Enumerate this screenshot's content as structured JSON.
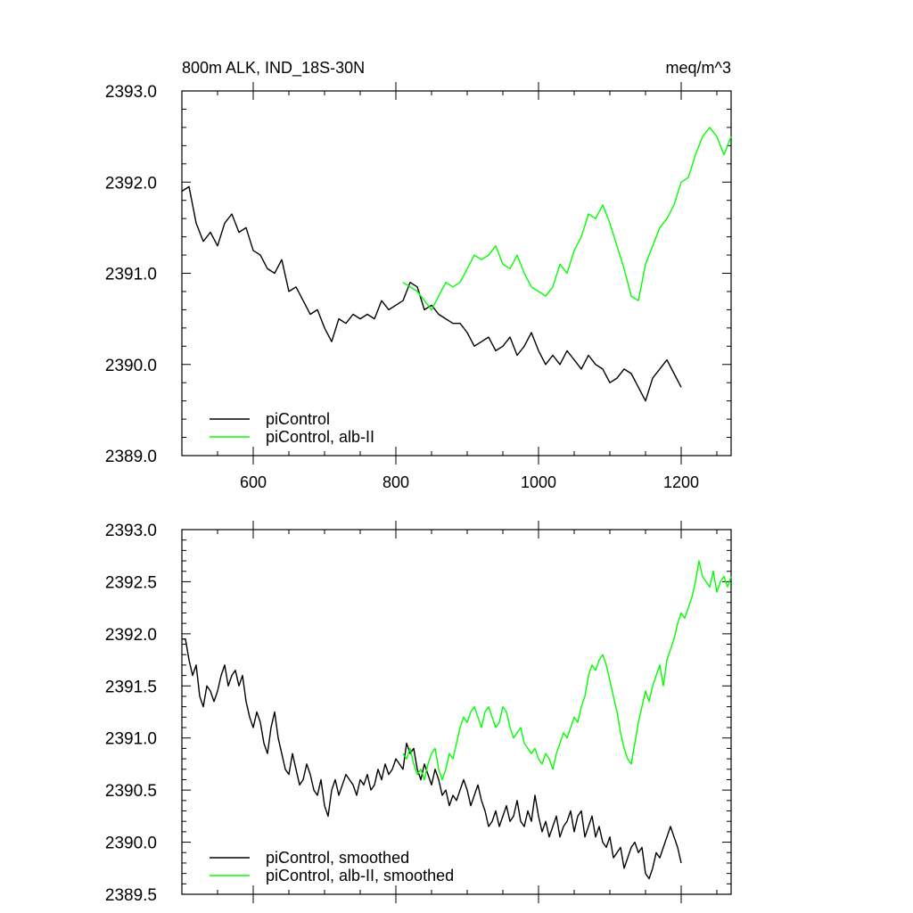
{
  "chart_data": [
    {
      "type": "line",
      "title_left": "800m ALK, IND_18S-30N",
      "title_right": "meq/m^3",
      "xlim": [
        500,
        1270
      ],
      "ylim": [
        2389.0,
        2393.0
      ],
      "xticks": [
        600,
        800,
        1000,
        1200
      ],
      "xtick_labels": [
        "600",
        "800",
        "1000",
        "1200"
      ],
      "yticks": [
        2389.0,
        2390.0,
        2391.0,
        2392.0,
        2393.0
      ],
      "ytick_labels": [
        "2389.0",
        "2390.0",
        "2391.0",
        "2392.0",
        "2393.0"
      ],
      "legend_position": "bottom-left",
      "series": [
        {
          "name": "piControl",
          "color": "#000000",
          "x": [
            500,
            510,
            520,
            530,
            540,
            550,
            560,
            570,
            580,
            590,
            600,
            610,
            620,
            630,
            640,
            650,
            660,
            670,
            680,
            690,
            700,
            710,
            720,
            730,
            740,
            750,
            760,
            770,
            780,
            790,
            800,
            810,
            820,
            830,
            840,
            850,
            860,
            870,
            880,
            890,
            900,
            910,
            920,
            930,
            940,
            950,
            960,
            970,
            980,
            990,
            1000,
            1010,
            1020,
            1030,
            1040,
            1050,
            1060,
            1070,
            1080,
            1090,
            1100,
            1110,
            1120,
            1130,
            1140,
            1150,
            1160,
            1170,
            1180,
            1190,
            1200
          ],
          "y": [
            2391.9,
            2391.95,
            2391.55,
            2391.35,
            2391.45,
            2391.3,
            2391.55,
            2391.65,
            2391.45,
            2391.5,
            2391.25,
            2391.2,
            2391.05,
            2391.0,
            2391.15,
            2390.8,
            2390.85,
            2390.7,
            2390.55,
            2390.6,
            2390.4,
            2390.25,
            2390.5,
            2390.45,
            2390.55,
            2390.5,
            2390.55,
            2390.5,
            2390.7,
            2390.6,
            2390.65,
            2390.7,
            2390.9,
            2390.85,
            2390.6,
            2390.65,
            2390.55,
            2390.5,
            2390.45,
            2390.45,
            2390.35,
            2390.2,
            2390.25,
            2390.3,
            2390.15,
            2390.2,
            2390.3,
            2390.1,
            2390.2,
            2390.35,
            2390.15,
            2390.0,
            2390.1,
            2390.0,
            2390.15,
            2390.05,
            2389.95,
            2390.1,
            2390.0,
            2389.95,
            2389.8,
            2389.85,
            2389.95,
            2389.9,
            2389.75,
            2389.6,
            2389.85,
            2389.95,
            2390.05,
            2389.9,
            2389.75
          ]
        },
        {
          "name": "piControl, alb-II",
          "color": "#00ff00",
          "x": [
            810,
            820,
            830,
            840,
            850,
            860,
            870,
            880,
            890,
            900,
            910,
            920,
            930,
            940,
            950,
            960,
            970,
            980,
            990,
            1000,
            1010,
            1020,
            1030,
            1040,
            1050,
            1060,
            1070,
            1080,
            1090,
            1100,
            1110,
            1120,
            1130,
            1140,
            1150,
            1160,
            1170,
            1180,
            1190,
            1200,
            1210,
            1220,
            1230,
            1240,
            1250,
            1260,
            1270
          ],
          "y": [
            2390.9,
            2390.85,
            2390.8,
            2390.7,
            2390.6,
            2390.75,
            2390.9,
            2390.85,
            2390.9,
            2391.05,
            2391.2,
            2391.15,
            2391.2,
            2391.3,
            2391.1,
            2391.05,
            2391.2,
            2391.0,
            2390.85,
            2390.8,
            2390.75,
            2390.85,
            2391.1,
            2391.0,
            2391.25,
            2391.4,
            2391.65,
            2391.6,
            2391.75,
            2391.55,
            2391.3,
            2391.05,
            2390.75,
            2390.7,
            2391.1,
            2391.3,
            2391.5,
            2391.6,
            2391.75,
            2392.0,
            2392.05,
            2392.3,
            2392.5,
            2392.6,
            2392.5,
            2392.3,
            2392.5
          ]
        }
      ]
    },
    {
      "type": "line",
      "xlim": [
        500,
        1270
      ],
      "ylim": [
        2389.5,
        2393.0
      ],
      "xticks": [
        600,
        800,
        1000,
        1200
      ],
      "yticks": [
        2389.5,
        2390.0,
        2390.5,
        2391.0,
        2391.5,
        2392.0,
        2392.5,
        2393.0
      ],
      "ytick_labels": [
        "2389.5",
        "2390.0",
        "2390.5",
        "2391.0",
        "2391.5",
        "2392.0",
        "2392.5",
        "2393.0"
      ],
      "legend_position": "bottom-left",
      "series": [
        {
          "name": "piControl, smoothed",
          "color": "#000000",
          "x": [
            500,
            505,
            510,
            515,
            520,
            525,
            530,
            535,
            540,
            545,
            550,
            555,
            560,
            565,
            570,
            575,
            580,
            585,
            590,
            595,
            600,
            605,
            610,
            615,
            620,
            625,
            630,
            635,
            640,
            645,
            650,
            655,
            660,
            665,
            670,
            675,
            680,
            685,
            690,
            695,
            700,
            705,
            710,
            715,
            720,
            725,
            730,
            735,
            740,
            745,
            750,
            755,
            760,
            765,
            770,
            775,
            780,
            785,
            790,
            795,
            800,
            805,
            810,
            815,
            820,
            825,
            830,
            835,
            840,
            845,
            850,
            855,
            860,
            865,
            870,
            875,
            880,
            885,
            890,
            895,
            900,
            905,
            910,
            915,
            920,
            925,
            930,
            935,
            940,
            945,
            950,
            955,
            960,
            965,
            970,
            975,
            980,
            985,
            990,
            995,
            1000,
            1005,
            1010,
            1015,
            1020,
            1025,
            1030,
            1035,
            1040,
            1045,
            1050,
            1055,
            1060,
            1065,
            1070,
            1075,
            1080,
            1085,
            1090,
            1095,
            1100,
            1105,
            1110,
            1115,
            1120,
            1125,
            1130,
            1135,
            1140,
            1145,
            1150,
            1155,
            1160,
            1165,
            1170,
            1175,
            1180,
            1185,
            1190,
            1195,
            1200
          ],
          "y": [
            2391.95,
            2391.95,
            2391.75,
            2391.6,
            2391.7,
            2391.4,
            2391.3,
            2391.5,
            2391.45,
            2391.35,
            2391.45,
            2391.6,
            2391.7,
            2391.5,
            2391.6,
            2391.65,
            2391.5,
            2391.6,
            2391.35,
            2391.2,
            2391.1,
            2391.25,
            2391.15,
            2390.95,
            2390.85,
            2391.1,
            2391.25,
            2391.0,
            2390.85,
            2390.7,
            2390.65,
            2390.85,
            2390.7,
            2390.55,
            2390.6,
            2390.75,
            2390.65,
            2390.5,
            2390.45,
            2390.6,
            2390.35,
            2390.25,
            2390.5,
            2390.6,
            2390.45,
            2390.55,
            2390.65,
            2390.6,
            2390.55,
            2390.45,
            2390.6,
            2390.55,
            2390.65,
            2390.5,
            2390.55,
            2390.7,
            2390.6,
            2390.75,
            2390.65,
            2390.7,
            2390.8,
            2390.75,
            2390.7,
            2390.95,
            2390.85,
            2390.9,
            2390.7,
            2390.6,
            2390.75,
            2390.65,
            2390.55,
            2390.7,
            2390.6,
            2390.45,
            2390.5,
            2390.35,
            2390.45,
            2390.4,
            2390.5,
            2390.6,
            2390.5,
            2390.35,
            2390.45,
            2390.55,
            2390.4,
            2390.3,
            2390.15,
            2390.2,
            2390.3,
            2390.15,
            2390.25,
            2390.35,
            2390.2,
            2390.25,
            2390.4,
            2390.2,
            2390.15,
            2390.3,
            2390.2,
            2390.45,
            2390.25,
            2390.1,
            2390.2,
            2390.05,
            2390.15,
            2390.25,
            2390.05,
            2390.15,
            2390.2,
            2390.3,
            2390.1,
            2390.25,
            2390.3,
            2390.05,
            2390.15,
            2390.25,
            2390.05,
            2390.15,
            2390.0,
            2389.95,
            2390.05,
            2389.85,
            2389.9,
            2389.95,
            2389.75,
            2389.85,
            2389.95,
            2390.0,
            2389.9,
            2389.95,
            2389.7,
            2389.65,
            2389.75,
            2389.9,
            2389.85,
            2389.95,
            2390.05,
            2390.15,
            2390.05,
            2389.95,
            2389.8
          ]
        },
        {
          "name": "piControl, alb-II, smoothed",
          "color": "#00ff00",
          "x": [
            810,
            815,
            820,
            825,
            830,
            835,
            840,
            845,
            850,
            855,
            860,
            865,
            870,
            875,
            880,
            885,
            890,
            895,
            900,
            905,
            910,
            915,
            920,
            925,
            930,
            935,
            940,
            945,
            950,
            955,
            960,
            965,
            970,
            975,
            980,
            985,
            990,
            995,
            1000,
            1005,
            1010,
            1015,
            1020,
            1025,
            1030,
            1035,
            1040,
            1045,
            1050,
            1055,
            1060,
            1065,
            1070,
            1075,
            1080,
            1085,
            1090,
            1095,
            1100,
            1105,
            1110,
            1115,
            1120,
            1125,
            1130,
            1135,
            1140,
            1145,
            1150,
            1155,
            1160,
            1165,
            1170,
            1175,
            1180,
            1185,
            1190,
            1195,
            1200,
            1205,
            1210,
            1215,
            1220,
            1225,
            1230,
            1235,
            1240,
            1245,
            1250,
            1255,
            1260,
            1265,
            1270
          ],
          "y": [
            2390.85,
            2390.8,
            2390.9,
            2390.75,
            2390.65,
            2390.7,
            2390.6,
            2390.75,
            2390.85,
            2390.9,
            2390.7,
            2390.6,
            2390.7,
            2390.85,
            2390.8,
            2390.95,
            2391.1,
            2391.2,
            2391.15,
            2391.25,
            2391.3,
            2391.2,
            2391.1,
            2391.25,
            2391.3,
            2391.2,
            2391.1,
            2391.15,
            2391.3,
            2391.25,
            2391.1,
            2391.0,
            2391.05,
            2391.1,
            2390.95,
            2390.9,
            2390.85,
            2390.9,
            2390.8,
            2390.75,
            2390.85,
            2390.8,
            2390.7,
            2390.85,
            2390.95,
            2391.05,
            2391.0,
            2391.1,
            2391.2,
            2391.15,
            2391.3,
            2391.4,
            2391.6,
            2391.7,
            2391.65,
            2391.75,
            2391.8,
            2391.7,
            2391.55,
            2391.4,
            2391.25,
            2391.05,
            2390.9,
            2390.8,
            2390.75,
            2390.95,
            2391.15,
            2391.3,
            2391.45,
            2391.35,
            2391.5,
            2391.6,
            2391.7,
            2391.5,
            2391.75,
            2391.85,
            2391.95,
            2392.1,
            2392.2,
            2392.15,
            2392.25,
            2392.35,
            2392.5,
            2392.7,
            2392.55,
            2392.5,
            2392.45,
            2392.6,
            2392.4,
            2392.5,
            2392.55,
            2392.45,
            2392.55
          ]
        }
      ]
    }
  ]
}
